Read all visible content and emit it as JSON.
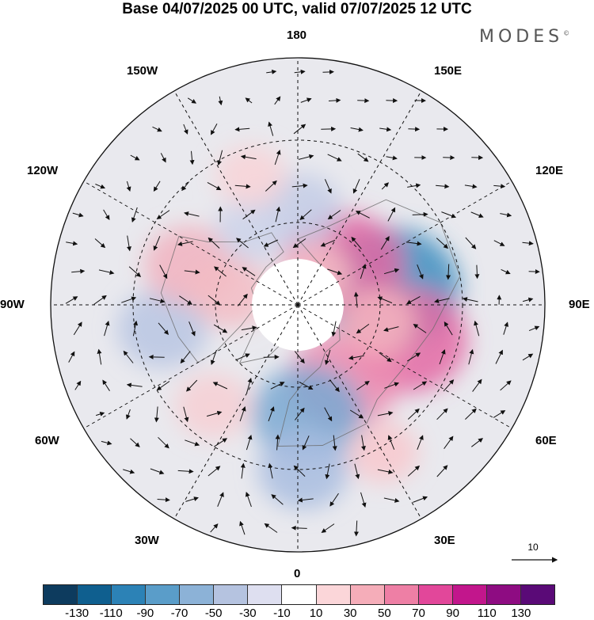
{
  "title": "Base 04/07/2025 00 UTC, valid 07/07/2025 12 UTC",
  "brand": "MODES",
  "brand_mark": "©",
  "longitude_labels": {
    "lon180": "180",
    "lon150W": "150W",
    "lon150E": "150E",
    "lon120W": "120W",
    "lon120E": "120E",
    "lon90W": "90W",
    "lon90E": "90E",
    "lon60W": "60W",
    "lon60E": "60E",
    "lon30W": "30W",
    "lon30E": "30E",
    "lon0": "0"
  },
  "wind_reference": {
    "label": "10"
  },
  "colorbar": {
    "colors": [
      "#0d3b5e",
      "#0f5f8f",
      "#2c82b6",
      "#5a9dc9",
      "#8cb2d7",
      "#b5c3e0",
      "#dedff0",
      "#ffffff",
      "#fbd6d9",
      "#f5adb9",
      "#ee7fa5",
      "#e2479a",
      "#c2168c",
      "#8e0c82",
      "#5a0a77"
    ],
    "ticks": [
      "-130",
      "-110",
      "-90",
      "-70",
      "-50",
      "-30",
      "-10",
      "10",
      "30",
      "50",
      "70",
      "90",
      "110",
      "130"
    ]
  },
  "anomaly_centers": [
    {
      "lon": 100,
      "lat": 56,
      "value": -90,
      "color": "#3e8ec0"
    },
    {
      "lon": 132,
      "lat": 68,
      "value": 70,
      "color": "#e46aa5"
    },
    {
      "lon": 72,
      "lat": 48,
      "value": 70,
      "color": "#e46aa5"
    },
    {
      "lon": 32,
      "lat": 58,
      "value": 60,
      "color": "#ec8db2"
    },
    {
      "lon": 5,
      "lat": 50,
      "value": -60,
      "color": "#7aa9d2"
    },
    {
      "lon": 2,
      "lat": 30,
      "value": -40,
      "color": "#a9bde0"
    },
    {
      "lon": 78,
      "lat": 60,
      "value": 25,
      "color": "#f4b6c1"
    },
    {
      "lon": 30,
      "lat": 28,
      "value": 20,
      "color": "#f8c8ce"
    },
    {
      "lon": -80,
      "lat": 40,
      "value": -40,
      "color": "#b9c6e3"
    },
    {
      "lon": -110,
      "lat": 48,
      "value": 40,
      "color": "#f1b3bf"
    },
    {
      "lon": 178,
      "lat": 55,
      "value": -30,
      "color": "#c3cde6"
    },
    {
      "lon": -150,
      "lat": 58,
      "value": -25,
      "color": "#ccd4ea"
    },
    {
      "lon": 150,
      "lat": 78,
      "value": 25,
      "color": "#f4c0c7"
    },
    {
      "lon": -160,
      "lat": 40,
      "value": 20,
      "color": "#f8d3d7"
    },
    {
      "lon": -40,
      "lat": 42,
      "value": 25,
      "color": "#f7cfd4"
    },
    {
      "lon": -100,
      "lat": 65,
      "value": 30,
      "color": "#f3bcc4"
    }
  ]
}
